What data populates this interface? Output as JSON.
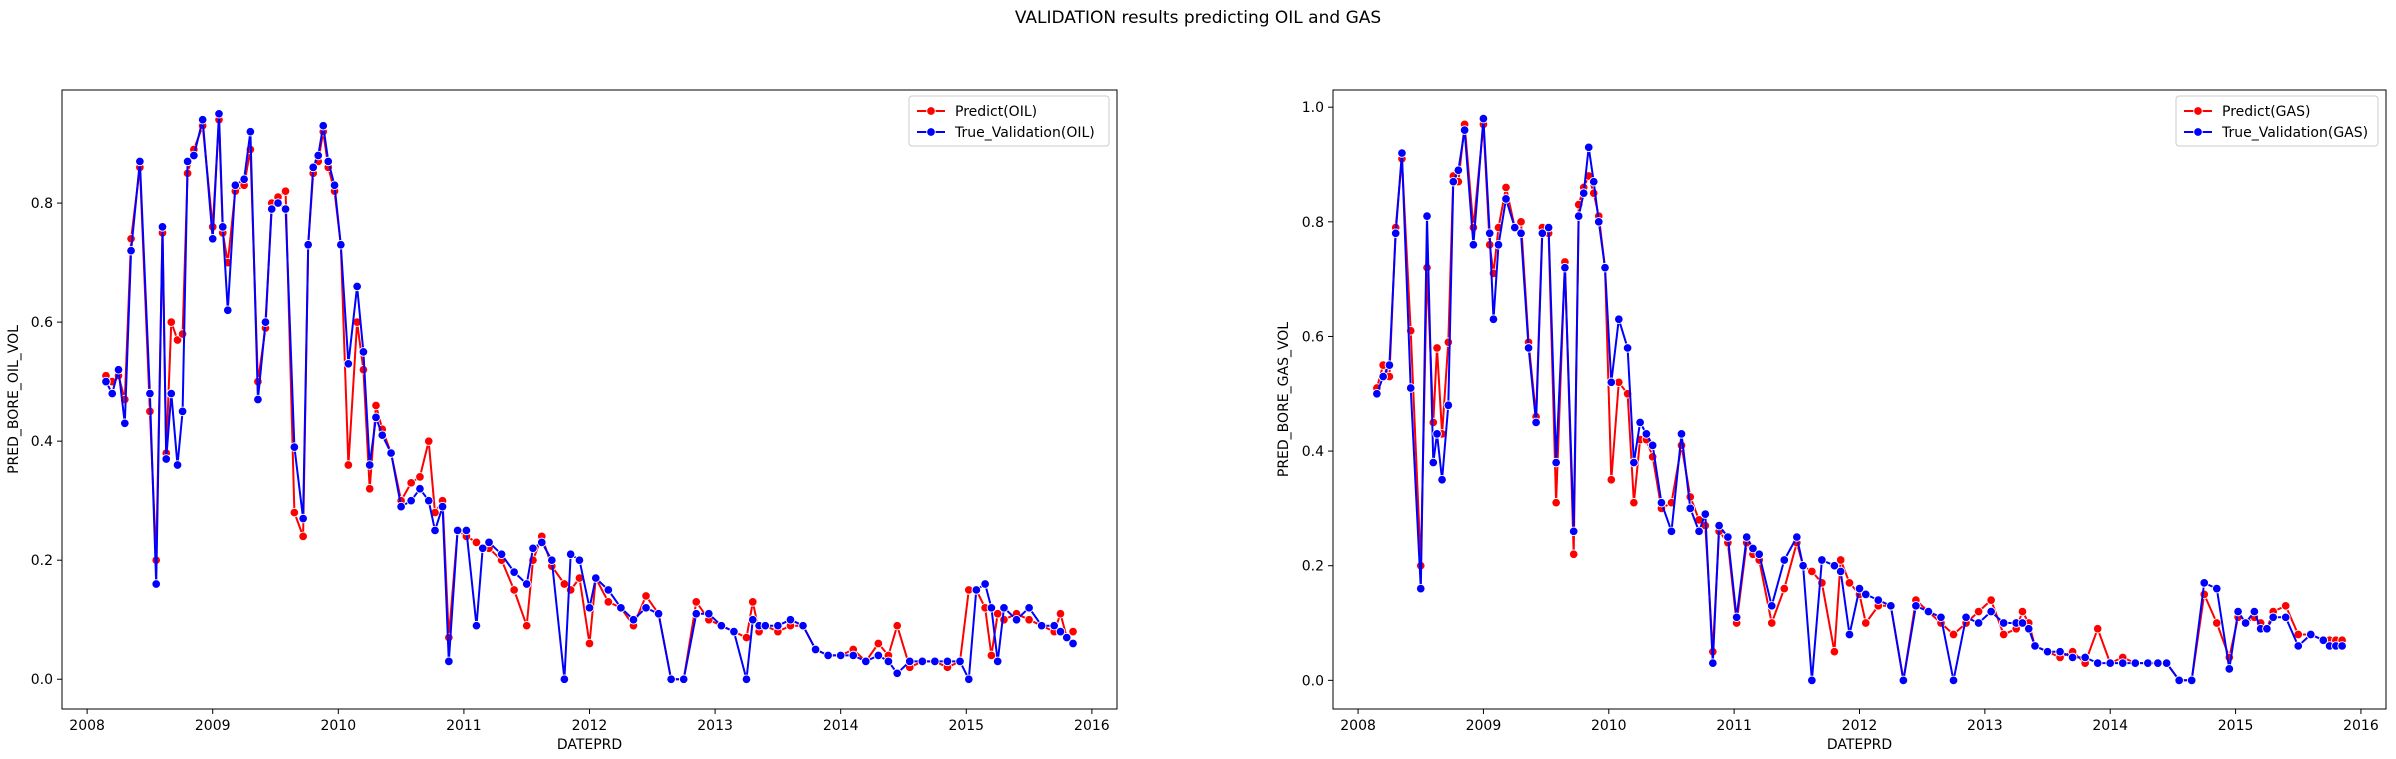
{
  "figure": {
    "title": "VALIDATION results predicting OIL and GAS"
  },
  "chart_data": [
    {
      "type": "line",
      "xlabel": "DATEPRD",
      "ylabel": "PRED_BORE_OIL_VOL",
      "xlim": [
        2007.8,
        2016.2
      ],
      "ylim": [
        -0.05,
        0.99
      ],
      "xticks": [
        2008,
        2009,
        2010,
        2011,
        2012,
        2013,
        2014,
        2015,
        2016
      ],
      "yticks": [
        0.0,
        0.2,
        0.4,
        0.6,
        0.8
      ],
      "legend_position": "top-right",
      "series": [
        {
          "name": "Predict(OIL)",
          "color": "#ff0000",
          "x": [
            2008.15,
            2008.2,
            2008.25,
            2008.3,
            2008.35,
            2008.42,
            2008.5,
            2008.55,
            2008.6,
            2008.63,
            2008.67,
            2008.72,
            2008.76,
            2008.8,
            2008.85,
            2008.92,
            2009.0,
            2009.05,
            2009.08,
            2009.12,
            2009.18,
            2009.25,
            2009.3,
            2009.36,
            2009.42,
            2009.47,
            2009.52,
            2009.58,
            2009.65,
            2009.72,
            2009.76,
            2009.8,
            2009.84,
            2009.88,
            2009.92,
            2009.97,
            2010.02,
            2010.08,
            2010.15,
            2010.2,
            2010.25,
            2010.3,
            2010.35,
            2010.42,
            2010.5,
            2010.58,
            2010.65,
            2010.72,
            2010.77,
            2010.83,
            2010.88,
            2010.95,
            2011.02,
            2011.1,
            2011.15,
            2011.2,
            2011.3,
            2011.4,
            2011.5,
            2011.55,
            2011.62,
            2011.7,
            2011.8,
            2011.85,
            2011.92,
            2012.0,
            2012.05,
            2012.15,
            2012.25,
            2012.35,
            2012.45,
            2012.55,
            2012.65,
            2012.75,
            2012.85,
            2012.95,
            2013.05,
            2013.15,
            2013.25,
            2013.3,
            2013.35,
            2013.4,
            2013.5,
            2013.6,
            2013.7,
            2013.8,
            2013.9,
            2014.0,
            2014.1,
            2014.2,
            2014.3,
            2014.38,
            2014.45,
            2014.55,
            2014.65,
            2014.75,
            2014.85,
            2014.95,
            2015.02,
            2015.08,
            2015.15,
            2015.2,
            2015.25,
            2015.3,
            2015.4,
            2015.5,
            2015.6,
            2015.7,
            2015.75,
            2015.8,
            2015.85
          ],
          "values": [
            0.51,
            0.5,
            0.51,
            0.47,
            0.74,
            0.86,
            0.45,
            0.2,
            0.75,
            0.38,
            0.6,
            0.57,
            0.58,
            0.85,
            0.89,
            0.93,
            0.76,
            0.94,
            0.75,
            0.7,
            0.82,
            0.83,
            0.89,
            0.5,
            0.59,
            0.8,
            0.81,
            0.82,
            0.28,
            0.24,
            0.73,
            0.85,
            0.87,
            0.92,
            0.86,
            0.82,
            0.73,
            0.36,
            0.6,
            0.52,
            0.32,
            0.46,
            0.42,
            0.38,
            0.3,
            0.33,
            0.34,
            0.4,
            0.28,
            0.3,
            0.07,
            0.25,
            0.24,
            0.23,
            0.22,
            0.22,
            0.2,
            0.15,
            0.09,
            0.2,
            0.24,
            0.19,
            0.16,
            0.15,
            0.17,
            0.06,
            0.17,
            0.13,
            0.12,
            0.09,
            0.14,
            0.11,
            0.0,
            0.0,
            0.13,
            0.1,
            0.09,
            0.08,
            0.07,
            0.13,
            0.08,
            0.09,
            0.08,
            0.09,
            0.09,
            0.05,
            0.04,
            0.04,
            0.05,
            0.03,
            0.06,
            0.04,
            0.09,
            0.02,
            0.03,
            0.03,
            0.02,
            0.03,
            0.15,
            0.15,
            0.12,
            0.04,
            0.11,
            0.1,
            0.11,
            0.1,
            0.09,
            0.08,
            0.11,
            0.07,
            0.08
          ]
        },
        {
          "name": "True_Validation(OIL)",
          "color": "#0000ff",
          "x": [
            2008.15,
            2008.2,
            2008.25,
            2008.3,
            2008.35,
            2008.42,
            2008.5,
            2008.55,
            2008.6,
            2008.63,
            2008.67,
            2008.72,
            2008.76,
            2008.8,
            2008.85,
            2008.92,
            2009.0,
            2009.05,
            2009.08,
            2009.12,
            2009.18,
            2009.25,
            2009.3,
            2009.36,
            2009.42,
            2009.47,
            2009.52,
            2009.58,
            2009.65,
            2009.72,
            2009.76,
            2009.8,
            2009.84,
            2009.88,
            2009.92,
            2009.97,
            2010.02,
            2010.08,
            2010.15,
            2010.2,
            2010.25,
            2010.3,
            2010.35,
            2010.42,
            2010.5,
            2010.58,
            2010.65,
            2010.72,
            2010.77,
            2010.83,
            2010.88,
            2010.95,
            2011.02,
            2011.1,
            2011.15,
            2011.2,
            2011.3,
            2011.4,
            2011.5,
            2011.55,
            2011.62,
            2011.7,
            2011.8,
            2011.85,
            2011.92,
            2012.0,
            2012.05,
            2012.15,
            2012.25,
            2012.35,
            2012.45,
            2012.55,
            2012.65,
            2012.75,
            2012.85,
            2012.95,
            2013.05,
            2013.15,
            2013.25,
            2013.3,
            2013.35,
            2013.4,
            2013.5,
            2013.6,
            2013.7,
            2013.8,
            2013.9,
            2014.0,
            2014.1,
            2014.2,
            2014.3,
            2014.38,
            2014.45,
            2014.55,
            2014.65,
            2014.75,
            2014.85,
            2014.95,
            2015.02,
            2015.08,
            2015.15,
            2015.2,
            2015.25,
            2015.3,
            2015.4,
            2015.5,
            2015.6,
            2015.7,
            2015.75,
            2015.8,
            2015.85
          ],
          "values": [
            0.5,
            0.48,
            0.52,
            0.43,
            0.72,
            0.87,
            0.48,
            0.16,
            0.76,
            0.37,
            0.48,
            0.36,
            0.45,
            0.87,
            0.88,
            0.94,
            0.74,
            0.95,
            0.76,
            0.62,
            0.83,
            0.84,
            0.92,
            0.47,
            0.6,
            0.79,
            0.8,
            0.79,
            0.39,
            0.27,
            0.73,
            0.86,
            0.88,
            0.93,
            0.87,
            0.83,
            0.73,
            0.53,
            0.66,
            0.55,
            0.36,
            0.44,
            0.41,
            0.38,
            0.29,
            0.3,
            0.32,
            0.3,
            0.25,
            0.29,
            0.03,
            0.25,
            0.25,
            0.09,
            0.22,
            0.23,
            0.21,
            0.18,
            0.16,
            0.22,
            0.23,
            0.2,
            0.0,
            0.21,
            0.2,
            0.12,
            0.17,
            0.15,
            0.12,
            0.1,
            0.12,
            0.11,
            0.0,
            0.0,
            0.11,
            0.11,
            0.09,
            0.08,
            0.0,
            0.1,
            0.09,
            0.09,
            0.09,
            0.1,
            0.09,
            0.05,
            0.04,
            0.04,
            0.04,
            0.03,
            0.04,
            0.03,
            0.01,
            0.03,
            0.03,
            0.03,
            0.03,
            0.03,
            0.0,
            0.15,
            0.16,
            0.12,
            0.03,
            0.12,
            0.1,
            0.12,
            0.09,
            0.09,
            0.08,
            0.07,
            0.06
          ]
        }
      ]
    },
    {
      "type": "line",
      "xlabel": "DATEPRD",
      "ylabel": "PRED_BORE_GAS_VOL",
      "xlim": [
        2007.8,
        2016.2
      ],
      "ylim": [
        -0.05,
        1.03
      ],
      "xticks": [
        2008,
        2009,
        2010,
        2011,
        2012,
        2013,
        2014,
        2015,
        2016
      ],
      "yticks": [
        0.0,
        0.2,
        0.4,
        0.6,
        0.8,
        1.0
      ],
      "legend_position": "top-right",
      "series": [
        {
          "name": "Predict(GAS)",
          "color": "#ff0000",
          "x": [
            2008.15,
            2008.2,
            2008.25,
            2008.3,
            2008.35,
            2008.42,
            2008.5,
            2008.55,
            2008.6,
            2008.63,
            2008.67,
            2008.72,
            2008.76,
            2008.8,
            2008.85,
            2008.92,
            2009.0,
            2009.05,
            2009.08,
            2009.12,
            2009.18,
            2009.25,
            2009.3,
            2009.36,
            2009.42,
            2009.47,
            2009.52,
            2009.58,
            2009.65,
            2009.72,
            2009.76,
            2009.8,
            2009.84,
            2009.88,
            2009.92,
            2009.97,
            2010.02,
            2010.08,
            2010.15,
            2010.2,
            2010.25,
            2010.3,
            2010.35,
            2010.42,
            2010.5,
            2010.58,
            2010.65,
            2010.72,
            2010.77,
            2010.83,
            2010.88,
            2010.95,
            2011.02,
            2011.1,
            2011.15,
            2011.2,
            2011.3,
            2011.4,
            2011.5,
            2011.55,
            2011.62,
            2011.7,
            2011.8,
            2011.85,
            2011.92,
            2012.0,
            2012.05,
            2012.15,
            2012.25,
            2012.35,
            2012.45,
            2012.55,
            2012.65,
            2012.75,
            2012.85,
            2012.95,
            2013.05,
            2013.15,
            2013.25,
            2013.3,
            2013.35,
            2013.4,
            2013.5,
            2013.6,
            2013.7,
            2013.8,
            2013.9,
            2014.0,
            2014.1,
            2014.2,
            2014.3,
            2014.38,
            2014.45,
            2014.55,
            2014.65,
            2014.75,
            2014.85,
            2014.95,
            2015.02,
            2015.08,
            2015.15,
            2015.2,
            2015.25,
            2015.3,
            2015.4,
            2015.5,
            2015.6,
            2015.7,
            2015.75,
            2015.8,
            2015.85
          ],
          "values": [
            0.51,
            0.55,
            0.53,
            0.79,
            0.91,
            0.61,
            0.2,
            0.72,
            0.45,
            0.58,
            0.43,
            0.59,
            0.88,
            0.87,
            0.97,
            0.79,
            0.97,
            0.76,
            0.71,
            0.79,
            0.86,
            0.79,
            0.8,
            0.59,
            0.46,
            0.79,
            0.78,
            0.31,
            0.73,
            0.22,
            0.83,
            0.86,
            0.88,
            0.85,
            0.81,
            0.72,
            0.35,
            0.52,
            0.5,
            0.31,
            0.42,
            0.42,
            0.39,
            0.3,
            0.31,
            0.41,
            0.32,
            0.28,
            0.27,
            0.05,
            0.26,
            0.24,
            0.1,
            0.24,
            0.22,
            0.21,
            0.1,
            0.16,
            0.24,
            0.2,
            0.19,
            0.17,
            0.05,
            0.21,
            0.17,
            0.15,
            0.1,
            0.13,
            0.13,
            0.0,
            0.14,
            0.12,
            0.1,
            0.08,
            0.1,
            0.12,
            0.14,
            0.08,
            0.09,
            0.12,
            0.1,
            0.06,
            0.05,
            0.04,
            0.05,
            0.03,
            0.09,
            0.03,
            0.04,
            0.03,
            0.03,
            0.03,
            0.03,
            0.0,
            0.0,
            0.15,
            0.1,
            0.04,
            0.11,
            0.1,
            0.11,
            0.1,
            0.09,
            0.12,
            0.13,
            0.08,
            0.08,
            0.07,
            0.07,
            0.07,
            0.07
          ]
        },
        {
          "name": "True_Validation(GAS)",
          "color": "#0000ff",
          "x": [
            2008.15,
            2008.2,
            2008.25,
            2008.3,
            2008.35,
            2008.42,
            2008.5,
            2008.55,
            2008.6,
            2008.63,
            2008.67,
            2008.72,
            2008.76,
            2008.8,
            2008.85,
            2008.92,
            2009.0,
            2009.05,
            2009.08,
            2009.12,
            2009.18,
            2009.25,
            2009.3,
            2009.36,
            2009.42,
            2009.47,
            2009.52,
            2009.58,
            2009.65,
            2009.72,
            2009.76,
            2009.8,
            2009.84,
            2009.88,
            2009.92,
            2009.97,
            2010.02,
            2010.08,
            2010.15,
            2010.2,
            2010.25,
            2010.3,
            2010.35,
            2010.42,
            2010.5,
            2010.58,
            2010.65,
            2010.72,
            2010.77,
            2010.83,
            2010.88,
            2010.95,
            2011.02,
            2011.1,
            2011.15,
            2011.2,
            2011.3,
            2011.4,
            2011.5,
            2011.55,
            2011.62,
            2011.7,
            2011.8,
            2011.85,
            2011.92,
            2012.0,
            2012.05,
            2012.15,
            2012.25,
            2012.35,
            2012.45,
            2012.55,
            2012.65,
            2012.75,
            2012.85,
            2012.95,
            2013.05,
            2013.15,
            2013.25,
            2013.3,
            2013.35,
            2013.4,
            2013.5,
            2013.6,
            2013.7,
            2013.8,
            2013.9,
            2014.0,
            2014.1,
            2014.2,
            2014.3,
            2014.38,
            2014.45,
            2014.55,
            2014.65,
            2014.75,
            2014.85,
            2014.95,
            2015.02,
            2015.08,
            2015.15,
            2015.2,
            2015.25,
            2015.3,
            2015.4,
            2015.5,
            2015.6,
            2015.7,
            2015.75,
            2015.8,
            2015.85
          ],
          "values": [
            0.5,
            0.53,
            0.55,
            0.78,
            0.92,
            0.51,
            0.16,
            0.81,
            0.38,
            0.43,
            0.35,
            0.48,
            0.87,
            0.89,
            0.96,
            0.76,
            0.98,
            0.78,
            0.63,
            0.76,
            0.84,
            0.79,
            0.78,
            0.58,
            0.45,
            0.78,
            0.79,
            0.38,
            0.72,
            0.26,
            0.81,
            0.85,
            0.93,
            0.87,
            0.8,
            0.72,
            0.52,
            0.63,
            0.58,
            0.38,
            0.45,
            0.43,
            0.41,
            0.31,
            0.26,
            0.43,
            0.3,
            0.26,
            0.29,
            0.03,
            0.27,
            0.25,
            0.11,
            0.25,
            0.23,
            0.22,
            0.13,
            0.21,
            0.25,
            0.2,
            0.0,
            0.21,
            0.2,
            0.19,
            0.08,
            0.16,
            0.15,
            0.14,
            0.13,
            0.0,
            0.13,
            0.12,
            0.11,
            0.0,
            0.11,
            0.1,
            0.12,
            0.1,
            0.1,
            0.1,
            0.09,
            0.06,
            0.05,
            0.05,
            0.04,
            0.04,
            0.03,
            0.03,
            0.03,
            0.03,
            0.03,
            0.03,
            0.03,
            0.0,
            0.0,
            0.17,
            0.16,
            0.02,
            0.12,
            0.1,
            0.12,
            0.09,
            0.09,
            0.11,
            0.11,
            0.06,
            0.08,
            0.07,
            0.06,
            0.06,
            0.06
          ]
        }
      ]
    }
  ]
}
